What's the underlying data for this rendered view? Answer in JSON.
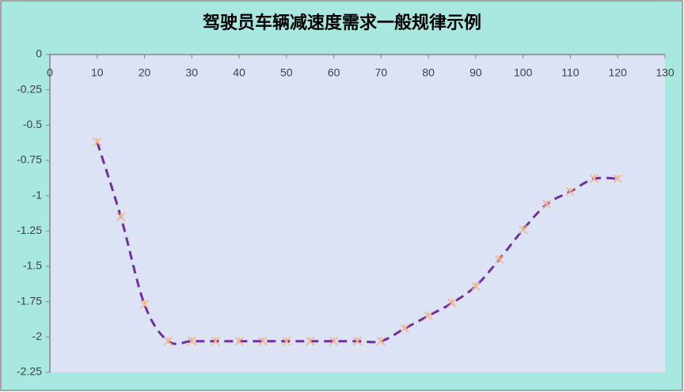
{
  "chart_data": {
    "type": "scatter",
    "title": "驾驶员车辆减速度需求一般规律示例",
    "x": [
      10,
      15,
      20,
      25,
      30,
      35,
      40,
      45,
      50,
      55,
      60,
      65,
      70,
      75,
      80,
      85,
      90,
      95,
      100,
      105,
      110,
      115,
      120
    ],
    "series": [
      {
        "color": "#7030a0",
        "marker_color": "#f4b183",
        "line_style": "dashed",
        "smooth": true,
        "values": [
          -0.62,
          -1.15,
          -1.77,
          -2.03,
          -2.03,
          -2.03,
          -2.03,
          -2.03,
          -2.03,
          -2.03,
          -2.03,
          -2.03,
          -2.03,
          -1.94,
          -1.85,
          -1.76,
          -1.64,
          -1.45,
          -1.24,
          -1.06,
          -0.97,
          -0.88,
          -0.88
        ]
      }
    ],
    "xlim": [
      0,
      130
    ],
    "xticks": [
      0,
      10,
      20,
      30,
      40,
      50,
      60,
      70,
      80,
      90,
      100,
      110,
      120,
      130
    ],
    "ylim": [
      -2.25,
      0
    ],
    "yticks": [
      0,
      -0.25,
      -0.5,
      -0.75,
      -1,
      -1.25,
      -1.5,
      -1.75,
      -2,
      -2.25
    ]
  }
}
